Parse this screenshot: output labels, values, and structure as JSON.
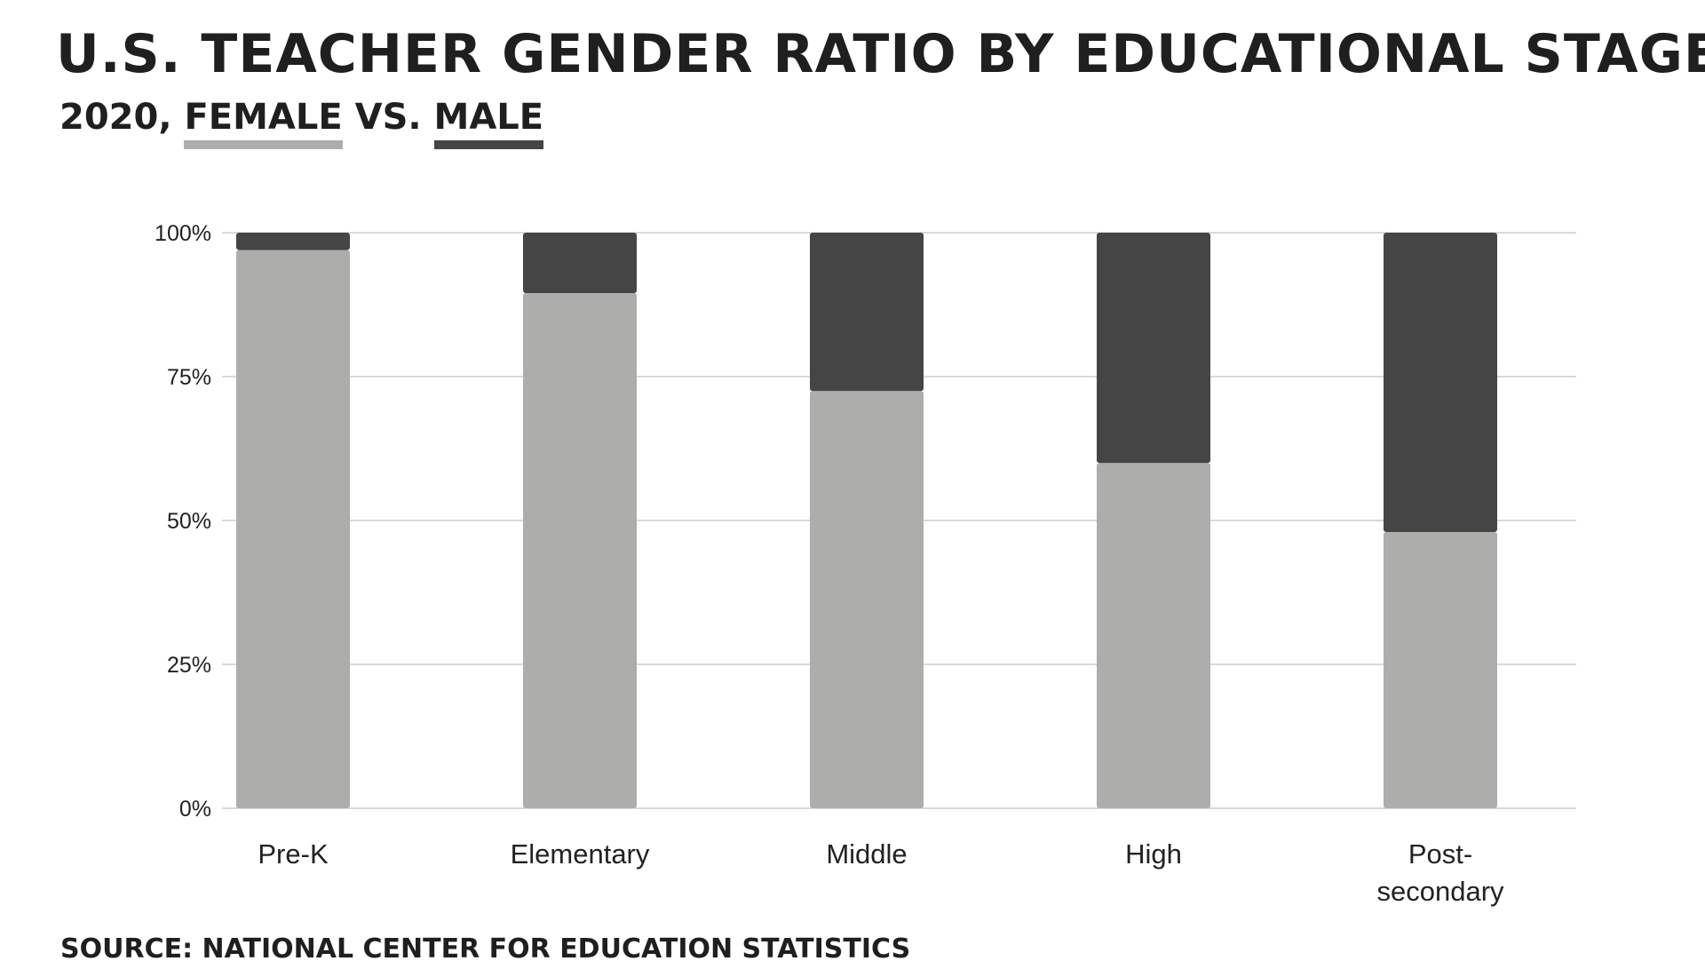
{
  "title": "U.S. TEACHER GENDER RATIO BY EDUCATIONAL STAGE",
  "subtitle": {
    "prefix": "2020,",
    "female_label": "FEMALE",
    "separator": "VS.",
    "male_label": "MALE"
  },
  "source": "SOURCE: NATIONAL CENTER FOR EDUCATION STATISTICS",
  "colors": {
    "female": "#adadac",
    "male": "#454545",
    "grid": "#d9d9d9",
    "text": "#222222"
  },
  "chart_data": {
    "type": "bar",
    "stacked": true,
    "categories": [
      "Pre-K",
      "Elementary",
      "Middle",
      "High",
      "Post-secondary"
    ],
    "category_labels": [
      [
        "Pre-K"
      ],
      [
        "Elementary"
      ],
      [
        "Middle"
      ],
      [
        "High"
      ],
      [
        "Post-",
        "secondary"
      ]
    ],
    "series": [
      {
        "name": "FEMALE",
        "color": "#adadac",
        "values": [
          97,
          89.5,
          72.5,
          60,
          48
        ]
      },
      {
        "name": "MALE",
        "color": "#454545",
        "values": [
          3,
          10.5,
          27.5,
          40,
          52
        ]
      }
    ],
    "yticks": [
      {
        "value": 100,
        "label": "100%"
      },
      {
        "value": 75,
        "label": "75%"
      },
      {
        "value": 50,
        "label": "50%"
      },
      {
        "value": 25,
        "label": "25%"
      },
      {
        "value": 0,
        "label": "0%"
      }
    ],
    "ylim": [
      0,
      100
    ],
    "grid": true,
    "legend": "subtitle"
  }
}
